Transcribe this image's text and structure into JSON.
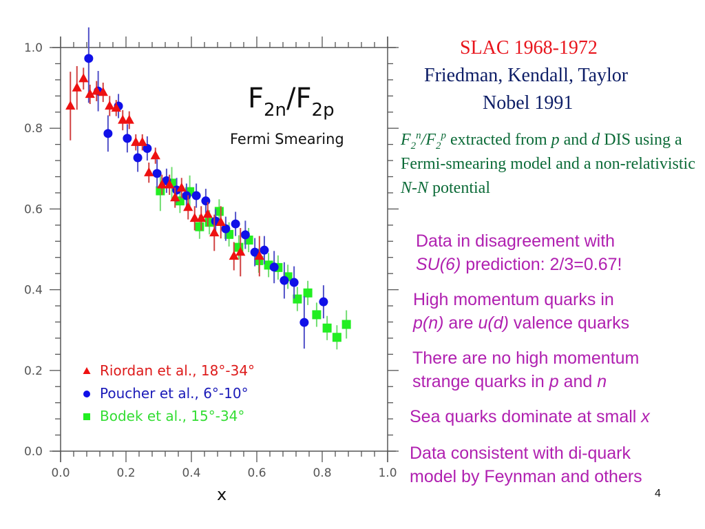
{
  "slide": {
    "title": "SLAC 1968-1972",
    "authors": "Friedman, Kendall, Taylor",
    "award": "Nobel 1991",
    "description": {
      "f": "F",
      "sub2": "2",
      "sup_n": "n",
      "slash": "/",
      "sup_p": "p",
      "text1": " extracted from ",
      "p": "p",
      "text2": " and ",
      "d": "d",
      "text3": " DIS using a Fermi-smearing model and a non-relativistic ",
      "nn": "N-N",
      "text4": " potential"
    },
    "bullets": [
      {
        "line1": "Data in disagreement with",
        "line2_italic": "SU(6)",
        "line2_rest": " prediction: 2/3=0.67!"
      },
      {
        "line1": "High momentum quarks in",
        "l2a_italic": "p(n)",
        "l2b": " are ",
        "l2c_italic": "u(d)",
        "l2d": " valence quarks"
      },
      {
        "line1": "There are no high momentum",
        "l2a": "strange quarks in ",
        "l2b_italic": "p",
        "l2c": " and ",
        "l2d_italic": "n"
      },
      {
        "text": "Sea quarks dominate at small ",
        "italic": "x"
      },
      {
        "line1": "Data consistent with di-quark",
        "line2": "model by Feynman and others"
      }
    ],
    "page_number": "4",
    "colors": {
      "title": "#e8141c",
      "authors": "#0d1d66",
      "description": "#0b6a37",
      "bullets": "#b020b0"
    }
  },
  "chart_data": {
    "type": "scatter",
    "title": "F2n/F2p",
    "title_parts": {
      "F1": "F",
      "sub1": "2n",
      "slash": "/",
      "F2": "F",
      "sub2": "2p"
    },
    "subtitle": "Fermi Smearing",
    "xlabel": "x",
    "ylabel": "",
    "xlim": [
      0.0,
      1.0
    ],
    "ylim": [
      0.0,
      1.0
    ],
    "x_ticks": [
      "0.0",
      "0.2",
      "0.4",
      "0.6",
      "0.8",
      "1.0"
    ],
    "y_ticks": [
      "0.0",
      "0.2",
      "0.4",
      "0.6",
      "0.8",
      "1.0"
    ],
    "x_tick_values": [
      0.0,
      0.2,
      0.4,
      0.6,
      0.8,
      1.0
    ],
    "y_tick_values": [
      0.0,
      0.2,
      0.4,
      0.6,
      0.8,
      1.0
    ],
    "minor_tick_step": 0.04,
    "grid": false,
    "legend_position": "bottom-left",
    "series": [
      {
        "name": "Riordan et al., 18°-34°",
        "marker": "triangle",
        "color": "#ee1111",
        "errcolor": "#d04040",
        "points": [
          [
            0.03,
            0.855,
            0.085
          ],
          [
            0.05,
            0.9,
            0.054
          ],
          [
            0.07,
            0.923,
            0.027
          ],
          [
            0.09,
            0.884,
            0.024
          ],
          [
            0.11,
            0.892,
            0.025
          ],
          [
            0.13,
            0.889,
            0.024
          ],
          [
            0.15,
            0.855,
            0.025
          ],
          [
            0.17,
            0.85,
            0.02
          ],
          [
            0.19,
            0.82,
            0.025
          ],
          [
            0.21,
            0.82,
            0.022
          ],
          [
            0.23,
            0.765,
            0.02
          ],
          [
            0.25,
            0.765,
            0.02
          ],
          [
            0.27,
            0.69,
            0.025
          ],
          [
            0.29,
            0.732,
            0.02
          ],
          [
            0.31,
            0.66,
            0.025
          ],
          [
            0.333,
            0.66,
            0.025
          ],
          [
            0.35,
            0.628,
            0.025
          ],
          [
            0.37,
            0.652,
            0.025
          ],
          [
            0.39,
            0.604,
            0.03
          ],
          [
            0.41,
            0.577,
            0.03
          ],
          [
            0.43,
            0.577,
            0.03
          ],
          [
            0.45,
            0.587,
            0.03
          ],
          [
            0.47,
            0.541,
            0.045
          ],
          [
            0.49,
            0.567,
            0.04
          ],
          [
            0.53,
            0.483,
            0.035
          ],
          [
            0.55,
            0.493,
            0.06
          ],
          [
            0.608,
            0.483,
            0.05
          ]
        ]
      },
      {
        "name": "Poucher et al., 6°-10°",
        "marker": "circle",
        "color": "#1010e8",
        "errcolor": "#5050c8",
        "points": [
          [
            0.086,
            0.973,
            0.11
          ],
          [
            0.115,
            0.892,
            0.05
          ],
          [
            0.145,
            0.787,
            0.045
          ],
          [
            0.177,
            0.855,
            0.03
          ],
          [
            0.204,
            0.775,
            0.035
          ],
          [
            0.236,
            0.727,
            0.035
          ],
          [
            0.265,
            0.75,
            0.03
          ],
          [
            0.295,
            0.688,
            0.035
          ],
          [
            0.324,
            0.67,
            0.03
          ],
          [
            0.355,
            0.647,
            0.03
          ],
          [
            0.385,
            0.633,
            0.03
          ],
          [
            0.415,
            0.633,
            0.03
          ],
          [
            0.444,
            0.62,
            0.03
          ],
          [
            0.474,
            0.57,
            0.03
          ],
          [
            0.505,
            0.551,
            0.03
          ],
          [
            0.535,
            0.563,
            0.03
          ],
          [
            0.565,
            0.536,
            0.035
          ],
          [
            0.594,
            0.493,
            0.035
          ],
          [
            0.623,
            0.498,
            0.035
          ],
          [
            0.653,
            0.456,
            0.04
          ],
          [
            0.684,
            0.423,
            0.045
          ],
          [
            0.714,
            0.418,
            0.04
          ],
          [
            0.745,
            0.319,
            0.065
          ],
          [
            0.804,
            0.37,
            0.041
          ]
        ]
      },
      {
        "name": "Bodek et al., 15°-34°",
        "marker": "square",
        "color": "#22ee22",
        "errcolor": "#70dd70",
        "points": [
          [
            0.305,
            0.645,
            0.05
          ],
          [
            0.34,
            0.664,
            0.04
          ],
          [
            0.365,
            0.62,
            0.03
          ],
          [
            0.395,
            0.643,
            0.04
          ],
          [
            0.425,
            0.556,
            0.03
          ],
          [
            0.455,
            0.567,
            0.03
          ],
          [
            0.485,
            0.594,
            0.03
          ],
          [
            0.515,
            0.537,
            0.03
          ],
          [
            0.545,
            0.505,
            0.03
          ],
          [
            0.575,
            0.523,
            0.03
          ],
          [
            0.606,
            0.472,
            0.03
          ],
          [
            0.636,
            0.461,
            0.03
          ],
          [
            0.665,
            0.455,
            0.03
          ],
          [
            0.695,
            0.432,
            0.03
          ],
          [
            0.724,
            0.377,
            0.03
          ],
          [
            0.756,
            0.392,
            0.03
          ],
          [
            0.783,
            0.338,
            0.03
          ],
          [
            0.815,
            0.305,
            0.03
          ],
          [
            0.845,
            0.282,
            0.03
          ],
          [
            0.874,
            0.314,
            0.035
          ]
        ]
      }
    ]
  }
}
